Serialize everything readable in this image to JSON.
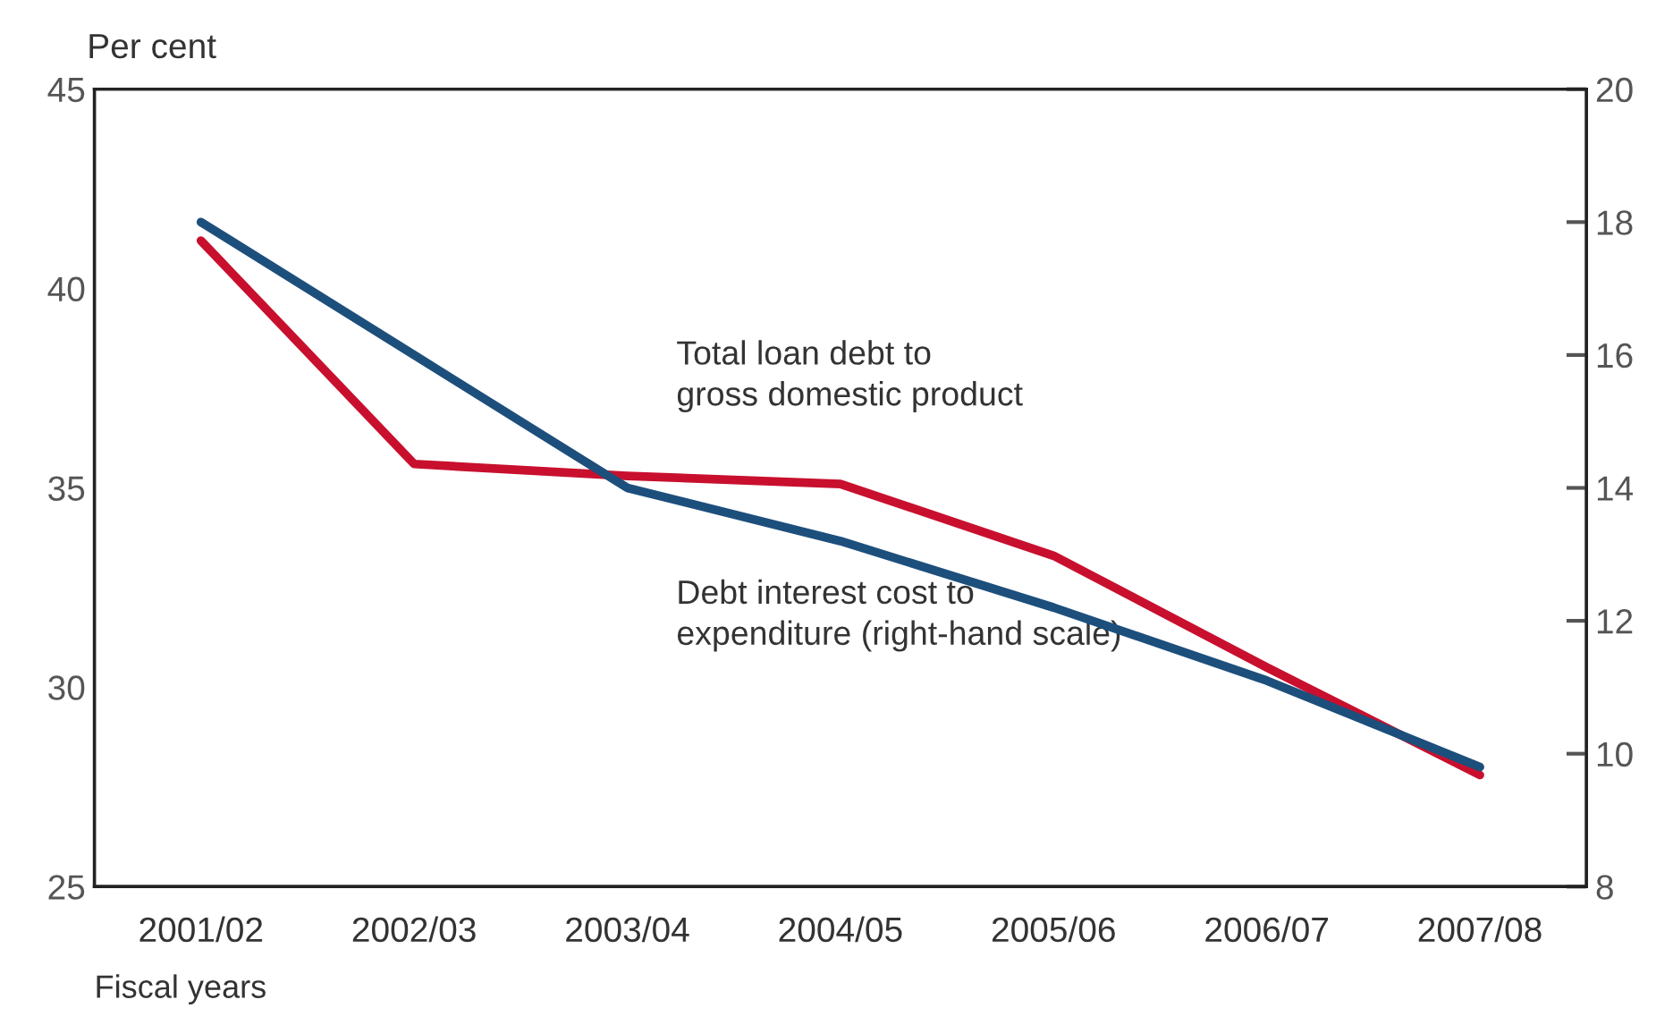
{
  "chart_data": {
    "type": "line",
    "ylabel": "Per cent",
    "xlabel": "Fiscal years",
    "categories": [
      "2001/02",
      "2002/03",
      "2003/04",
      "2004/05",
      "2005/06",
      "2006/07",
      "2007/08"
    ],
    "series": [
      {
        "color": "#c8102e",
        "values": [
          41.2,
          35.6,
          35.3,
          35.1,
          33.3,
          30.5,
          27.8
        ]
      },
      {
        "color": "#1d4f7c",
        "values": [
          18.0,
          16.0,
          14.0,
          13.2,
          12.2,
          11.1,
          9.8
        ],
        "axis": "y2"
      }
    ],
    "ylim": [
      25,
      45
    ],
    "yticks": [
      25,
      30,
      35,
      40,
      45
    ],
    "y2lim": [
      8,
      20
    ],
    "y2ticks": [
      8,
      10,
      12,
      14,
      16,
      18,
      20
    ],
    "annotations": [
      "Total loan debt to\ngross domestic product",
      "Debt interest cost to\nexpenditure (right-hand scale)"
    ],
    "grid": false,
    "legend": false,
    "marker": "none",
    "line_style": "solid"
  }
}
